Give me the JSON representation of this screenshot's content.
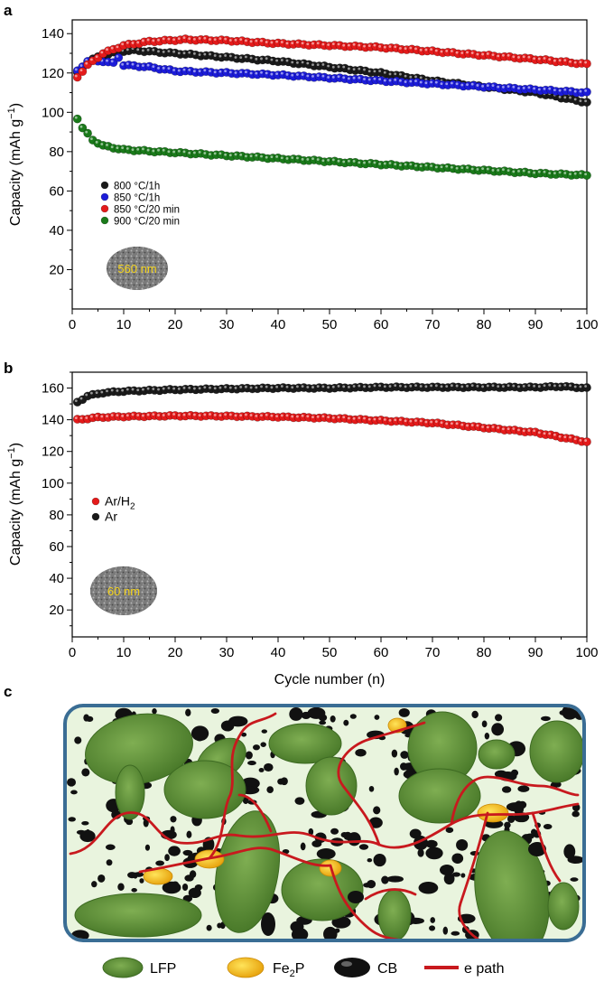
{
  "panel_labels": {
    "a": "a",
    "b": "b",
    "c": "c"
  },
  "colors": {
    "black_series": "#1a1a1a",
    "blue_series": "#1c1cd9",
    "red_series": "#e41a1a",
    "green_series": "#1a7a1a",
    "lfp": "#5e8a38",
    "fe2p": "#f2c020",
    "cb": "#111111",
    "e_path": "#c8191e",
    "box_fill": "#e9f4de",
    "box_stroke": "#3a6d94"
  },
  "chart_data": [
    {
      "type": "scatter",
      "panel": "a",
      "xlabel": "",
      "ylabel": "Capacity (mAh g",
      "ylabel_sup": "−1",
      "ylabel_close": ")",
      "xlim": [
        0,
        100
      ],
      "ylim": [
        0,
        147
      ],
      "xticks": [
        0,
        10,
        20,
        30,
        40,
        50,
        60,
        70,
        80,
        90,
        100
      ],
      "yticks": [
        20,
        40,
        60,
        80,
        100,
        120,
        140
      ],
      "inset_label": "560 nm",
      "legend_position": "lower-left",
      "series": [
        {
          "name": "800 °C/1h",
          "color": "#1a1a1a",
          "anchors": [
            [
              1,
              120
            ],
            [
              3,
              126
            ],
            [
              6,
              129
            ],
            [
              9,
              131
            ],
            [
              12,
              131.5
            ],
            [
              20,
              130
            ],
            [
              30,
              128
            ],
            [
              40,
              126
            ],
            [
              50,
              123
            ],
            [
              60,
              120
            ],
            [
              70,
              116
            ],
            [
              80,
              113
            ],
            [
              90,
              110
            ],
            [
              100,
              105
            ]
          ]
        },
        {
          "name": "850 °C/1h",
          "color": "#1c1cd9",
          "anchors": [
            [
              1,
              121
            ],
            [
              3,
              126
            ],
            [
              6,
              126
            ],
            [
              8,
              125
            ],
            [
              9,
              128
            ],
            [
              10,
              124
            ],
            [
              15,
              123
            ],
            [
              20,
              121
            ],
            [
              30,
              120
            ],
            [
              40,
              119
            ],
            [
              50,
              117.5
            ],
            [
              60,
              116
            ],
            [
              70,
              114.5
            ],
            [
              80,
              113
            ],
            [
              90,
              111.5
            ],
            [
              100,
              110
            ]
          ]
        },
        {
          "name": "850 °C/20 min",
          "color": "#e41a1a",
          "anchors": [
            [
              1,
              118
            ],
            [
              3,
              124
            ],
            [
              6,
              130
            ],
            [
              10,
              134
            ],
            [
              15,
              136
            ],
            [
              22,
              137
            ],
            [
              30,
              136.5
            ],
            [
              40,
              135
            ],
            [
              50,
              134
            ],
            [
              60,
              133
            ],
            [
              70,
              131
            ],
            [
              80,
              129
            ],
            [
              90,
              127
            ],
            [
              100,
              124.5
            ]
          ]
        },
        {
          "name": "900 °C/20 min",
          "color": "#1a7a1a",
          "anchors": [
            [
              1,
              97
            ],
            [
              2,
              92
            ],
            [
              4,
              86
            ],
            [
              6,
              83
            ],
            [
              10,
              81
            ],
            [
              20,
              79.5
            ],
            [
              30,
              78
            ],
            [
              40,
              76.5
            ],
            [
              50,
              75
            ],
            [
              60,
              73.5
            ],
            [
              70,
              72
            ],
            [
              80,
              70.5
            ],
            [
              90,
              69
            ],
            [
              100,
              68
            ]
          ]
        }
      ]
    },
    {
      "type": "scatter",
      "panel": "b",
      "xlabel": "Cycle number (n)",
      "ylabel": "Capacity (mAh g",
      "ylabel_sup": "−1",
      "ylabel_close": ")",
      "xlim": [
        0,
        100
      ],
      "ylim": [
        3,
        170
      ],
      "xticks": [
        0,
        10,
        20,
        30,
        40,
        50,
        60,
        70,
        80,
        90,
        100
      ],
      "yticks": [
        20,
        40,
        60,
        80,
        100,
        120,
        140,
        160
      ],
      "inset_label": "60 nm",
      "legend_position": "lower-left",
      "series": [
        {
          "name": "Ar/H",
          "name_sub": "2",
          "color": "#e41a1a",
          "anchors": [
            [
              1,
              140
            ],
            [
              5,
              141.5
            ],
            [
              10,
              142
            ],
            [
              20,
              142.5
            ],
            [
              30,
              142.3
            ],
            [
              40,
              141.8
            ],
            [
              50,
              141
            ],
            [
              60,
              139.5
            ],
            [
              70,
              138
            ],
            [
              80,
              135
            ],
            [
              90,
              132
            ],
            [
              100,
              126
            ]
          ]
        },
        {
          "name": "Ar",
          "color": "#1a1a1a",
          "anchors": [
            [
              1,
              151
            ],
            [
              3,
              155
            ],
            [
              6,
              157
            ],
            [
              10,
              158
            ],
            [
              20,
              159
            ],
            [
              30,
              159.5
            ],
            [
              40,
              160
            ],
            [
              50,
              160
            ],
            [
              60,
              160.5
            ],
            [
              70,
              160.5
            ],
            [
              80,
              160.5
            ],
            [
              90,
              160.5
            ],
            [
              95,
              161
            ],
            [
              100,
              160
            ]
          ]
        }
      ]
    }
  ],
  "diagram_key": [
    {
      "label": "LFP",
      "shape": "LFP"
    },
    {
      "label": "Fe",
      "sub": "2",
      "tail": "P",
      "shape": "Fe2P"
    },
    {
      "label": "CB",
      "shape": "CB"
    },
    {
      "label": "e path",
      "shape": "e-path"
    }
  ]
}
